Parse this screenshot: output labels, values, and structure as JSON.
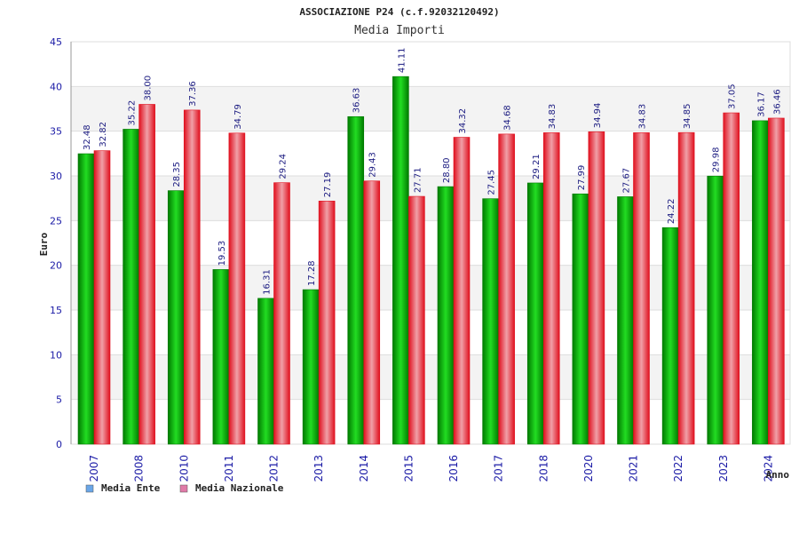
{
  "chart_data": {
    "type": "bar",
    "title": "ASSOCIAZIONE P24 (c.f.92032120492)",
    "subtitle": "Media Importi",
    "xlabel": "Anno",
    "ylabel": "Euro",
    "ylim": [
      0,
      45
    ],
    "yticks": [
      "0",
      "5",
      "10",
      "15",
      "20",
      "25",
      "30",
      "35",
      "40",
      "45"
    ],
    "categories": [
      "2007",
      "2008",
      "2010",
      "2011",
      "2012",
      "2013",
      "2014",
      "2015",
      "2016",
      "2017",
      "2018",
      "2020",
      "2021",
      "2022",
      "2023",
      "2024"
    ],
    "series": [
      {
        "name": "Media Ente",
        "values": [
          32.48,
          35.22,
          28.35,
          19.53,
          16.31,
          17.28,
          36.63,
          41.11,
          28.8,
          27.45,
          29.21,
          27.99,
          27.67,
          24.22,
          29.98,
          36.17
        ],
        "labels": [
          "32.48",
          "35.22",
          "28.35",
          "19.53",
          "16.31",
          "17.28",
          "36.63",
          "41.11",
          "28.80",
          "27.45",
          "29.21",
          "27.99",
          "27.67",
          "24.22",
          "29.98",
          "36.17"
        ]
      },
      {
        "name": "Media Nazionale",
        "values": [
          32.82,
          38.0,
          37.36,
          34.79,
          29.24,
          27.19,
          29.43,
          27.71,
          34.32,
          34.68,
          34.83,
          34.94,
          34.83,
          34.85,
          37.05,
          36.46
        ],
        "labels": [
          "32.82",
          "38.00",
          "37.36",
          "34.79",
          "29.24",
          "27.19",
          "29.43",
          "27.71",
          "34.32",
          "34.68",
          "34.83",
          "34.94",
          "34.83",
          "34.85",
          "37.05",
          "36.46"
        ]
      }
    ],
    "legend": [
      "Media Ente",
      "Media Nazionale"
    ],
    "colors": {
      "ente_dark": "#007a00",
      "ente_light": "#22dd22",
      "naz_dark": "#e0101e",
      "naz_light": "#f0a0a8",
      "legend_ente": "#6aa6e8",
      "legend_naz": "#e07aa8",
      "band": "#f3f3f3",
      "grid": "#dddddd"
    },
    "grid": true,
    "legend_position": "bottom-left"
  }
}
